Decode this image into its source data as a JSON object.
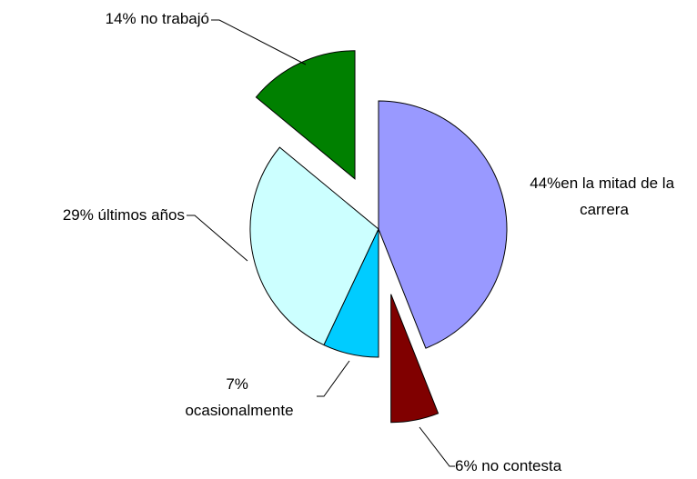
{
  "chart_data": {
    "type": "pie",
    "values": [
      44,
      6,
      7,
      29,
      14
    ],
    "value_labels": [
      "44%en la mitad de la carrera",
      "6% no contesta",
      "7% ocasionalmente",
      "29% últimos años",
      "14% no trabajó"
    ],
    "colors": [
      "#9999ff",
      "#800000",
      "#00ccff",
      "#ccffff",
      "#008000"
    ]
  }
}
